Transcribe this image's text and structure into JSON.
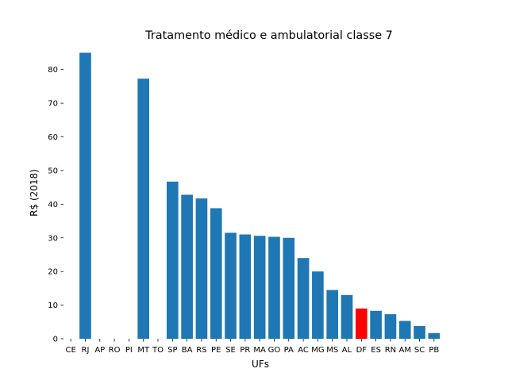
{
  "chart_data": {
    "type": "bar",
    "title": "Tratamento médico e ambulatorial classe 7",
    "xlabel": "UFs",
    "ylabel": "R$ (2018)",
    "ylim": [
      0,
      87
    ],
    "yticks": [
      0,
      10,
      20,
      30,
      40,
      50,
      60,
      70,
      80
    ],
    "grid": false,
    "categories": [
      "CE",
      "RJ",
      "AP",
      "RO",
      "PI",
      "MT",
      "TO",
      "SP",
      "BA",
      "RS",
      "PE",
      "SE",
      "PR",
      "MA",
      "GO",
      "PA",
      "AC",
      "MG",
      "MS",
      "AL",
      "DF",
      "ES",
      "RN",
      "AM",
      "SC",
      "PB"
    ],
    "values": [
      0,
      85.0,
      0,
      0,
      0,
      77.3,
      0,
      46.7,
      42.8,
      41.7,
      38.8,
      31.5,
      31.0,
      30.6,
      30.3,
      30.0,
      24.0,
      20.0,
      14.5,
      13.0,
      9.0,
      8.3,
      7.3,
      5.3,
      3.8,
      1.7
    ],
    "colors": {
      "default": "#1f77b4",
      "highlight": "#ff0000"
    },
    "highlight_category": "DF"
  }
}
